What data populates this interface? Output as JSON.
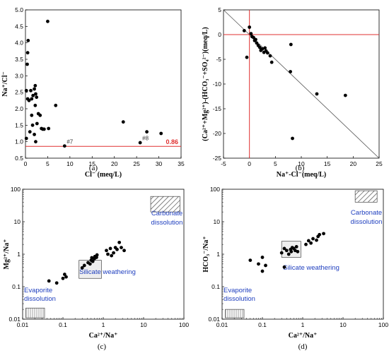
{
  "chart_data": [
    {
      "id": "a",
      "type": "scatter",
      "panel_label": "(a)",
      "xlabel": "Cl⁻ (meq/L)",
      "ylabel": "Na⁺/Cl⁻",
      "xlim": [
        0,
        35
      ],
      "ylim": [
        0.5,
        5.0
      ],
      "xticks": [
        "0",
        "5",
        "10",
        "15",
        "20",
        "25",
        "30",
        "35"
      ],
      "yticks": [
        "0.5",
        "1.0",
        "1.5",
        "2.0",
        "2.5",
        "3.0",
        "3.5",
        "4.0",
        "4.5",
        "5.0"
      ],
      "reference_line": {
        "y": 0.86,
        "label": "0.86",
        "color": "#e03030"
      },
      "annotations": [
        {
          "text": "#7",
          "x": 8.8,
          "y": 0.88
        },
        {
          "text": "#8",
          "x": 25.8,
          "y": 0.98
        }
      ],
      "points": [
        [
          0.6,
          4.07
        ],
        [
          0.5,
          3.7
        ],
        [
          0.4,
          3.35
        ],
        [
          0.2,
          2.55
        ],
        [
          0.5,
          2.3
        ],
        [
          0.8,
          2.25
        ],
        [
          1.2,
          2.55
        ],
        [
          1.4,
          2.3
        ],
        [
          1.7,
          2.4
        ],
        [
          2.0,
          2.6
        ],
        [
          2.2,
          2.7
        ],
        [
          2.3,
          2.45
        ],
        [
          2.5,
          2.35
        ],
        [
          2.2,
          2.1
        ],
        [
          1.4,
          1.8
        ],
        [
          2.9,
          1.85
        ],
        [
          3.3,
          1.8
        ],
        [
          2.6,
          1.55
        ],
        [
          1.6,
          1.5
        ],
        [
          3.6,
          1.4
        ],
        [
          3.9,
          1.38
        ],
        [
          1.0,
          1.3
        ],
        [
          2.0,
          1.22
        ],
        [
          4.2,
          1.38
        ],
        [
          5.2,
          1.4
        ],
        [
          0.2,
          1.1
        ],
        [
          2.3,
          1.0
        ],
        [
          5.0,
          4.65
        ],
        [
          6.8,
          2.1
        ],
        [
          22.0,
          1.6
        ],
        [
          27.3,
          1.3
        ],
        [
          30.5,
          1.25
        ],
        [
          8.8,
          0.87
        ],
        [
          25.8,
          0.97
        ]
      ]
    },
    {
      "id": "b",
      "type": "scatter",
      "panel_label": "(b)",
      "xlabel": "Na⁺-Cl⁻(meq/L)",
      "ylabel": "(Ca²⁺+Mg²⁺)-(HCO₃⁻+SO₄²⁻)(meq/L)",
      "xlim": [
        -5,
        25
      ],
      "ylim": [
        -25,
        5
      ],
      "xticks": [
        "-5",
        "0",
        "5",
        "10",
        "15",
        "20",
        "25"
      ],
      "yticks": [
        "5",
        "0",
        "-5",
        "-10",
        "-15",
        "-20",
        "-25"
      ],
      "reference_lines": {
        "x": 0,
        "y": 0,
        "color": "#e03030"
      },
      "diagonal": {
        "slope": -1,
        "color": "#555555"
      },
      "points": [
        [
          -1.0,
          0.8
        ],
        [
          -0.5,
          -4.6
        ],
        [
          0.0,
          1.5
        ],
        [
          0.3,
          0.2
        ],
        [
          0.5,
          -0.4
        ],
        [
          0.8,
          -0.6
        ],
        [
          1.0,
          -1.2
        ],
        [
          1.2,
          -1.0
        ],
        [
          1.4,
          -1.7
        ],
        [
          1.7,
          -2.2
        ],
        [
          2.0,
          -2.6
        ],
        [
          2.2,
          -3.2
        ],
        [
          2.5,
          -2.9
        ],
        [
          2.8,
          -3.6
        ],
        [
          3.0,
          -2.7
        ],
        [
          3.2,
          -3.3
        ],
        [
          3.5,
          -3.7
        ],
        [
          4.0,
          -4.3
        ],
        [
          4.3,
          -5.6
        ],
        [
          8.0,
          -2.0
        ],
        [
          7.9,
          -7.5
        ],
        [
          13.0,
          -12.0
        ],
        [
          18.5,
          -12.3
        ],
        [
          8.3,
          -21.0
        ]
      ]
    },
    {
      "id": "c",
      "type": "scatter",
      "panel_label": "(c)",
      "xlabel": "Ca²⁺/Na⁺",
      "ylabel": "Mg²⁺/Na⁺",
      "xscale": "log",
      "yscale": "log",
      "xlim": [
        0.01,
        100
      ],
      "ylim": [
        0.01,
        100
      ],
      "xticks": [
        "0.01",
        "0.1",
        "1",
        "10",
        "100"
      ],
      "yticks": [
        "0.01",
        "0.1",
        "1",
        "10",
        "100"
      ],
      "regions": [
        {
          "name": "Carbonate dissolution",
          "x": [
            15,
            80
          ],
          "y": [
            20,
            60
          ],
          "fill": "hatch"
        },
        {
          "name": "Silicate weathering",
          "x": [
            0.25,
            0.9
          ],
          "y": [
            0.18,
            0.65
          ],
          "fill": "light"
        },
        {
          "name": "Evaporite dissolution",
          "x": [
            0.012,
            0.035
          ],
          "y": [
            0.011,
            0.022
          ],
          "fill": "vertical"
        }
      ],
      "region_labels": [
        "Carbonate",
        "dissolution",
        "Silicate weathering",
        "Evaporite",
        "dissolution"
      ],
      "points": [
        [
          0.045,
          0.15
        ],
        [
          0.07,
          0.13
        ],
        [
          0.1,
          0.18
        ],
        [
          0.11,
          0.24
        ],
        [
          0.12,
          0.2
        ],
        [
          0.3,
          0.38
        ],
        [
          0.34,
          0.45
        ],
        [
          0.42,
          0.55
        ],
        [
          0.47,
          0.5
        ],
        [
          0.5,
          0.65
        ],
        [
          0.52,
          0.78
        ],
        [
          0.55,
          0.6
        ],
        [
          0.6,
          0.72
        ],
        [
          0.62,
          0.85
        ],
        [
          0.68,
          0.8
        ],
        [
          0.7,
          0.95
        ],
        [
          1.2,
          1.3
        ],
        [
          1.3,
          1.0
        ],
        [
          1.5,
          1.5
        ],
        [
          1.8,
          1.1
        ],
        [
          2.0,
          1.6
        ],
        [
          2.2,
          1.4
        ],
        [
          2.5,
          2.3
        ],
        [
          2.8,
          1.6
        ],
        [
          3.3,
          1.3
        ],
        [
          1.6,
          0.9
        ]
      ]
    },
    {
      "id": "d",
      "type": "scatter",
      "panel_label": "(d)",
      "xlabel": "Ca²⁺/Na⁺",
      "ylabel": "HCO₃⁻/Na⁺",
      "xscale": "log",
      "yscale": "log",
      "xlim": [
        0.01,
        100
      ],
      "ylim": [
        0.01,
        100
      ],
      "xticks": [
        "0.01",
        "0.1",
        "1",
        "10",
        "100"
      ],
      "yticks": [
        "0.01",
        "0.1",
        "1",
        "10",
        "100"
      ],
      "regions": [
        {
          "name": "Carbonate dissolution",
          "x": [
            20,
            70
          ],
          "y": [
            40,
            90
          ],
          "fill": "hatch"
        },
        {
          "name": "Silicate weathering",
          "x": [
            0.3,
            0.9
          ],
          "y": [
            0.8,
            2.5
          ],
          "fill": "light"
        },
        {
          "name": "Evaporite dissolution",
          "x": [
            0.012,
            0.035
          ],
          "y": [
            0.011,
            0.02
          ],
          "fill": "vertical"
        }
      ],
      "region_labels": [
        "Carbonate",
        "dissolution",
        "Silicate weathering",
        "Evaporite",
        "dissolution"
      ],
      "points": [
        [
          0.05,
          0.65
        ],
        [
          0.08,
          0.5
        ],
        [
          0.1,
          0.3
        ],
        [
          0.1,
          0.8
        ],
        [
          0.12,
          0.45
        ],
        [
          0.3,
          1.1
        ],
        [
          0.35,
          0.4
        ],
        [
          0.4,
          1.3
        ],
        [
          0.45,
          1.0
        ],
        [
          0.5,
          1.4
        ],
        [
          0.52,
          1.2
        ],
        [
          0.55,
          1.6
        ],
        [
          0.6,
          1.5
        ],
        [
          0.65,
          1.3
        ],
        [
          0.7,
          1.7
        ],
        [
          0.75,
          1.2
        ],
        [
          1.2,
          2.0
        ],
        [
          1.4,
          2.6
        ],
        [
          1.6,
          2.2
        ],
        [
          1.8,
          3.0
        ],
        [
          2.2,
          2.7
        ],
        [
          2.4,
          3.5
        ],
        [
          2.6,
          4.0
        ],
        [
          3.3,
          4.3
        ],
        [
          0.35,
          1.5
        ]
      ]
    }
  ]
}
